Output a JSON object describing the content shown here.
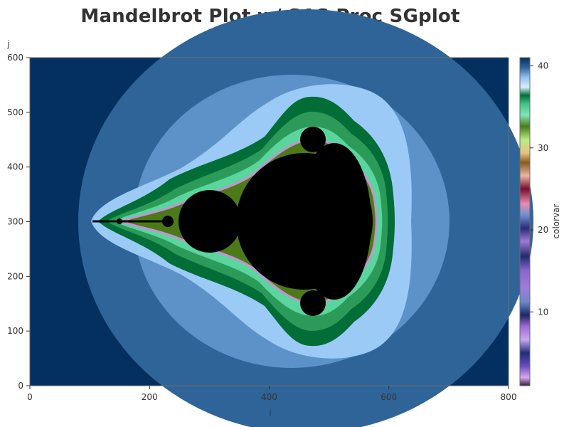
{
  "chart_data": {
    "type": "heatmap",
    "title": "Mandelbrot Plot w/ SAS Proc SGplot",
    "xlabel": "i",
    "ylabel": "j",
    "xlim": [
      0,
      800
    ],
    "ylim": [
      0,
      600
    ],
    "x_ticks": [
      "0",
      "200",
      "400",
      "600",
      "800"
    ],
    "y_ticks": [
      "0",
      "100",
      "200",
      "300",
      "400",
      "500",
      "600"
    ],
    "colorbar": {
      "label": "colorvar",
      "range": [
        1,
        41
      ],
      "ticks": [
        "10",
        "20",
        "30",
        "40"
      ]
    },
    "colors": {
      "set_interior": "#000000",
      "outer_bands": [
        "#04305f",
        "#2f6499",
        "#5c92c8",
        "#9ccaf6"
      ],
      "mid_bands": [
        "#006e36",
        "#2c9b5a",
        "#5bd59e",
        "#8df0c3"
      ],
      "edge_bands": [
        "#4c7a18",
        "#b6ec80",
        "#8a5a1a",
        "#d9a257",
        "#7a0d2c",
        "#eb8cb0",
        "#2c2c86",
        "#a586ea"
      ]
    }
  }
}
